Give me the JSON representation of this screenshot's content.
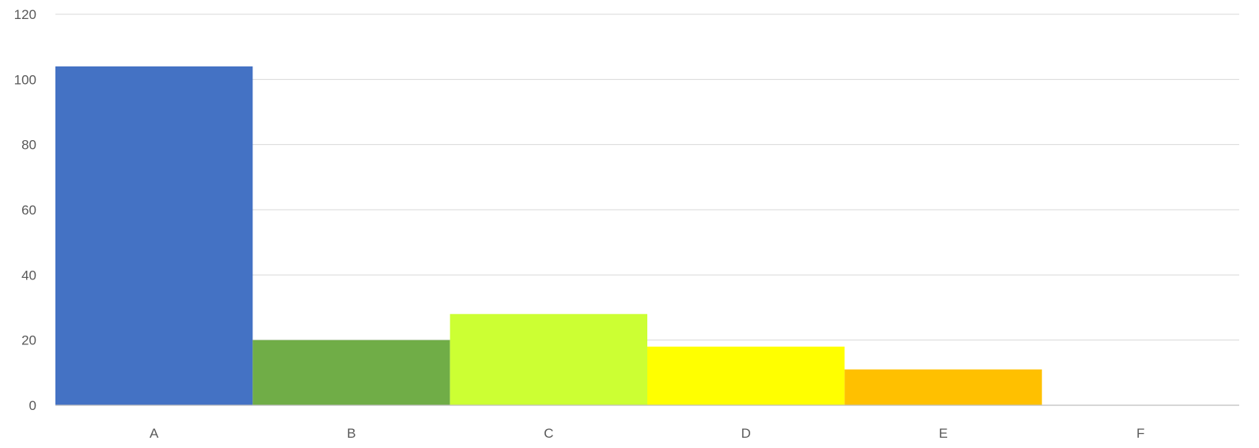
{
  "chart_data": {
    "type": "bar",
    "categories": [
      "A",
      "B",
      "C",
      "D",
      "E",
      "F"
    ],
    "values": [
      104,
      20,
      28,
      18,
      11,
      0
    ],
    "colors": [
      "#4472c4",
      "#70ad47",
      "#ccff33",
      "#ffff00",
      "#ffc000",
      "#ffffff"
    ],
    "ylim": [
      0,
      120
    ],
    "yticks": [
      0,
      20,
      40,
      60,
      80,
      100,
      120
    ],
    "grid": true,
    "bar_gap": "none",
    "title": "",
    "xlabel": "",
    "ylabel": ""
  }
}
